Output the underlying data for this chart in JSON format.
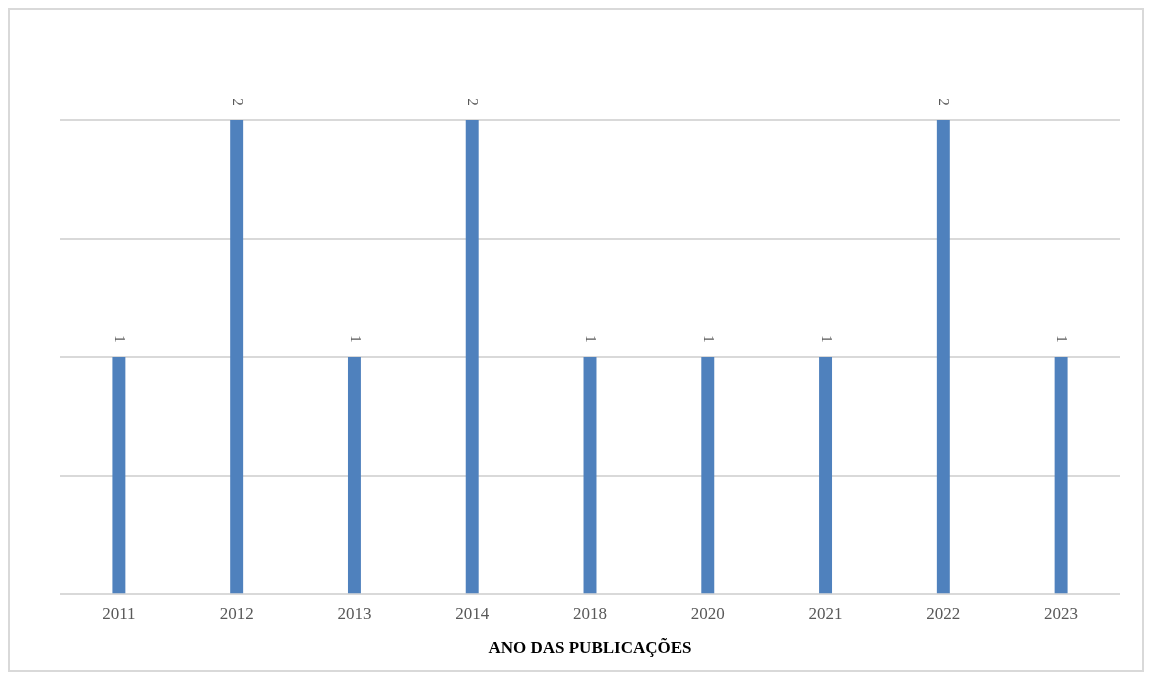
{
  "chart_data": {
    "type": "bar",
    "xlabel": "ANO DAS PUBLICAÇÕES",
    "categories": [
      "2011",
      "2012",
      "2013",
      "2014",
      "2018",
      "2020",
      "2021",
      "2022",
      "2023"
    ],
    "values": [
      1,
      2,
      1,
      2,
      1,
      1,
      1,
      2,
      1
    ],
    "color": "#4f81bd",
    "ylim": [
      0,
      2
    ],
    "yticks": [
      {
        "value": 0,
        "label": null
      },
      {
        "value": 0.5,
        "label": null
      },
      {
        "value": 1,
        "label": null
      },
      {
        "value": 1.5,
        "label": null
      },
      {
        "value": 2,
        "label": null
      }
    ],
    "grid": "y",
    "tick_labels": "x",
    "data_labels": true,
    "legend": false
  }
}
